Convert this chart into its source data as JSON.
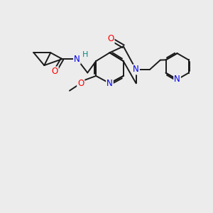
{
  "background_color": "#ececec",
  "bond_color": "#1a1a1a",
  "atom_colors": {
    "O": "#ff0000",
    "N": "#0000ee",
    "H": "#008888",
    "C": "#1a1a1a"
  },
  "figsize": [
    3.0,
    3.0
  ],
  "dpi": 100,
  "lw": 1.4,
  "fs": 8.5
}
